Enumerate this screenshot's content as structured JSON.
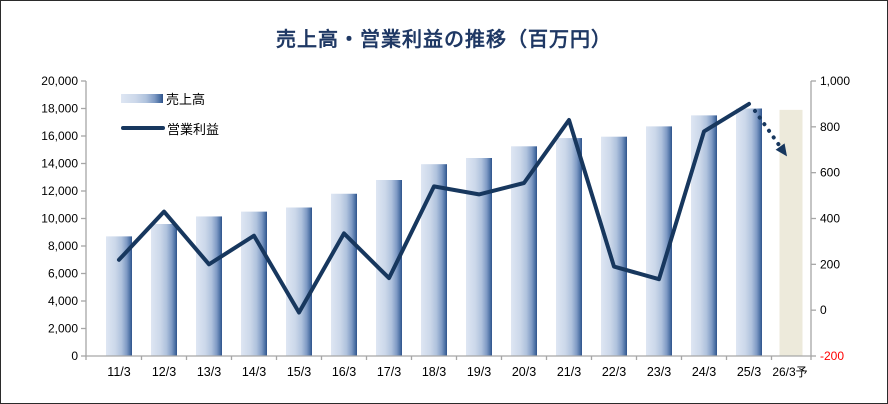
{
  "title": {
    "text": "売上高・営業利益の推移（百万円）",
    "color": "#1F3864"
  },
  "legend": {
    "items": [
      {
        "label": "売上高",
        "marker": "gradient-bar"
      },
      {
        "label": "営業利益",
        "marker": "line"
      }
    ]
  },
  "colors": {
    "title": "#1F3864",
    "line": "#17375E",
    "bar_gradient_start": "#DEE6F3",
    "bar_gradient_end": "#2F528A",
    "forecast_bar": "#EDEADB",
    "axis": "#A6A6A6",
    "tick_label": "#000000",
    "negative_tick_label": "#FF0000",
    "arrow": "#17375E",
    "background": "#FFFFFF"
  },
  "chart_data": {
    "type": "bar+line combo",
    "title": "売上高・営業利益の推移（百万円）",
    "unit": "百万円",
    "categories": [
      "11/3",
      "12/3",
      "13/3",
      "14/3",
      "15/3",
      "16/3",
      "17/3",
      "18/3",
      "19/3",
      "20/3",
      "21/3",
      "22/3",
      "23/3",
      "24/3",
      "25/3",
      "26/3予"
    ],
    "series": [
      {
        "name": "売上高",
        "type": "bar",
        "axis": "left",
        "values": [
          8700,
          9600,
          10150,
          10500,
          10800,
          11800,
          12800,
          13950,
          14400,
          15250,
          15850,
          15950,
          16700,
          17500,
          18000,
          17900
        ],
        "forecast_index": 15
      },
      {
        "name": "営業利益",
        "type": "line",
        "axis": "right",
        "values": [
          220,
          430,
          200,
          325,
          -10,
          335,
          140,
          540,
          505,
          555,
          830,
          190,
          135,
          780,
          900,
          null
        ]
      }
    ],
    "left_axis": {
      "min": 0,
      "max": 20000,
      "step": 2000,
      "tick_labels_top_to_bottom": [
        "20,000",
        "18,000",
        "16,000",
        "14,000",
        "12,000",
        "10,000",
        "8,000",
        "6,000",
        "4,000",
        "2,000",
        "0"
      ]
    },
    "right_axis": {
      "min": -200,
      "max": 1000,
      "step": 200,
      "tick_labels_top_to_bottom": [
        "1,000",
        "800",
        "600",
        "400",
        "200",
        "0",
        "-200"
      ]
    },
    "grid": false,
    "legend_position": "top-left-inside",
    "annotations": [
      {
        "type": "dotted-arrow",
        "from_category": "25/3",
        "from_value": 900,
        "to_category": "26/3予",
        "to_value": 680,
        "meaning": "forecast decline of operating profit"
      }
    ]
  }
}
